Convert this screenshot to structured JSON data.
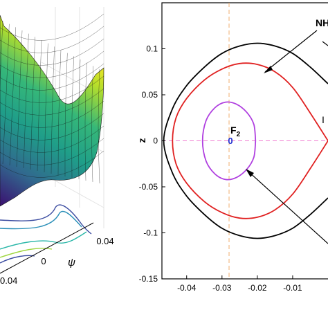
{
  "chart_data": [
    {
      "type": "surface",
      "axes": {
        "psi": {
          "label": "ψ",
          "ticks": [
            "0",
            "0.04"
          ]
        },
        "other": {
          "ticks": [
            "0.04"
          ]
        }
      },
      "colormap": [
        "#3b0f70",
        "#31688e",
        "#1f9e89",
        "#35b779",
        "#b5de2b",
        "#fde725"
      ],
      "contour_colors": [
        "#3a4ba0",
        "#2a8fb8",
        "#29b6a8",
        "#9fd63f"
      ]
    },
    {
      "type": "line",
      "xlabel": "",
      "ylabel": "z",
      "xlim": [
        -0.047,
        0.0
      ],
      "ylim": [
        -0.15,
        0.15
      ],
      "xticks": [
        -0.04,
        -0.03,
        -0.02,
        -0.01
      ],
      "xtick_labels": [
        "-0.04",
        "-0.03",
        "-0.02",
        "-0.01"
      ],
      "yticks": [
        0.1,
        0.05,
        0,
        -0.05,
        -0.1,
        -0.15
      ],
      "ytick_labels": [
        "0.1",
        "0.05",
        "0",
        "-0.05",
        "-0.1",
        "-0.15"
      ],
      "grid": false,
      "guides": {
        "vertical_x": -0.028,
        "horizontal_y": 0,
        "vertical_color": "#f0b070",
        "horizontal_color": "#f07ad0"
      },
      "series": [
        {
          "color": "#000000",
          "points": [
            [
              0,
              0.062
            ],
            [
              -0.005,
              0.08
            ],
            [
              -0.01,
              0.095
            ],
            [
              -0.015,
              0.103
            ],
            [
              -0.02,
              0.106
            ],
            [
              -0.025,
              0.103
            ],
            [
              -0.03,
              0.095
            ],
            [
              -0.035,
              0.08
            ],
            [
              -0.04,
              0.06
            ],
            [
              -0.044,
              0.035
            ],
            [
              -0.0465,
              0.0
            ],
            [
              -0.044,
              -0.035
            ],
            [
              -0.04,
              -0.06
            ],
            [
              -0.035,
              -0.08
            ],
            [
              -0.03,
              -0.095
            ],
            [
              -0.025,
              -0.103
            ],
            [
              -0.02,
              -0.106
            ],
            [
              -0.015,
              -0.103
            ],
            [
              -0.01,
              -0.095
            ],
            [
              -0.005,
              -0.08
            ],
            [
              0,
              -0.062
            ]
          ]
        },
        {
          "color": "#e02020",
          "points": [
            [
              0,
              0.0
            ],
            [
              -0.005,
              0.03
            ],
            [
              -0.01,
              0.058
            ],
            [
              -0.015,
              0.075
            ],
            [
              -0.02,
              0.083
            ],
            [
              -0.025,
              0.084
            ],
            [
              -0.03,
              0.078
            ],
            [
              -0.035,
              0.066
            ],
            [
              -0.04,
              0.046
            ],
            [
              -0.043,
              0.025
            ],
            [
              -0.044,
              0.0
            ],
            [
              -0.043,
              -0.025
            ],
            [
              -0.04,
              -0.046
            ],
            [
              -0.035,
              -0.066
            ],
            [
              -0.03,
              -0.078
            ],
            [
              -0.025,
              -0.084
            ],
            [
              -0.02,
              -0.083
            ],
            [
              -0.015,
              -0.075
            ],
            [
              -0.01,
              -0.058
            ],
            [
              -0.005,
              -0.03
            ],
            [
              0,
              0.0
            ]
          ]
        },
        {
          "color": "#b040e0",
          "points": [
            [
              -0.0205,
              0.0
            ],
            [
              -0.021,
              0.018
            ],
            [
              -0.023,
              0.031
            ],
            [
              -0.026,
              0.04
            ],
            [
              -0.029,
              0.042
            ],
            [
              -0.032,
              0.036
            ],
            [
              -0.0345,
              0.022
            ],
            [
              -0.0355,
              0.0
            ],
            [
              -0.0345,
              -0.022
            ],
            [
              -0.032,
              -0.036
            ],
            [
              -0.029,
              -0.042
            ],
            [
              -0.026,
              -0.04
            ],
            [
              -0.023,
              -0.031
            ],
            [
              -0.021,
              -0.018
            ],
            [
              -0.0205,
              0.0
            ]
          ]
        }
      ],
      "equilibrium": {
        "x": -0.028,
        "y": 0,
        "marker_label": "0",
        "marker_color": "#1f2fd0"
      },
      "annotations": [
        {
          "text": "F",
          "subscript": "2"
        },
        {
          "text": "NH"
        },
        {
          "text": "I"
        }
      ]
    }
  ]
}
